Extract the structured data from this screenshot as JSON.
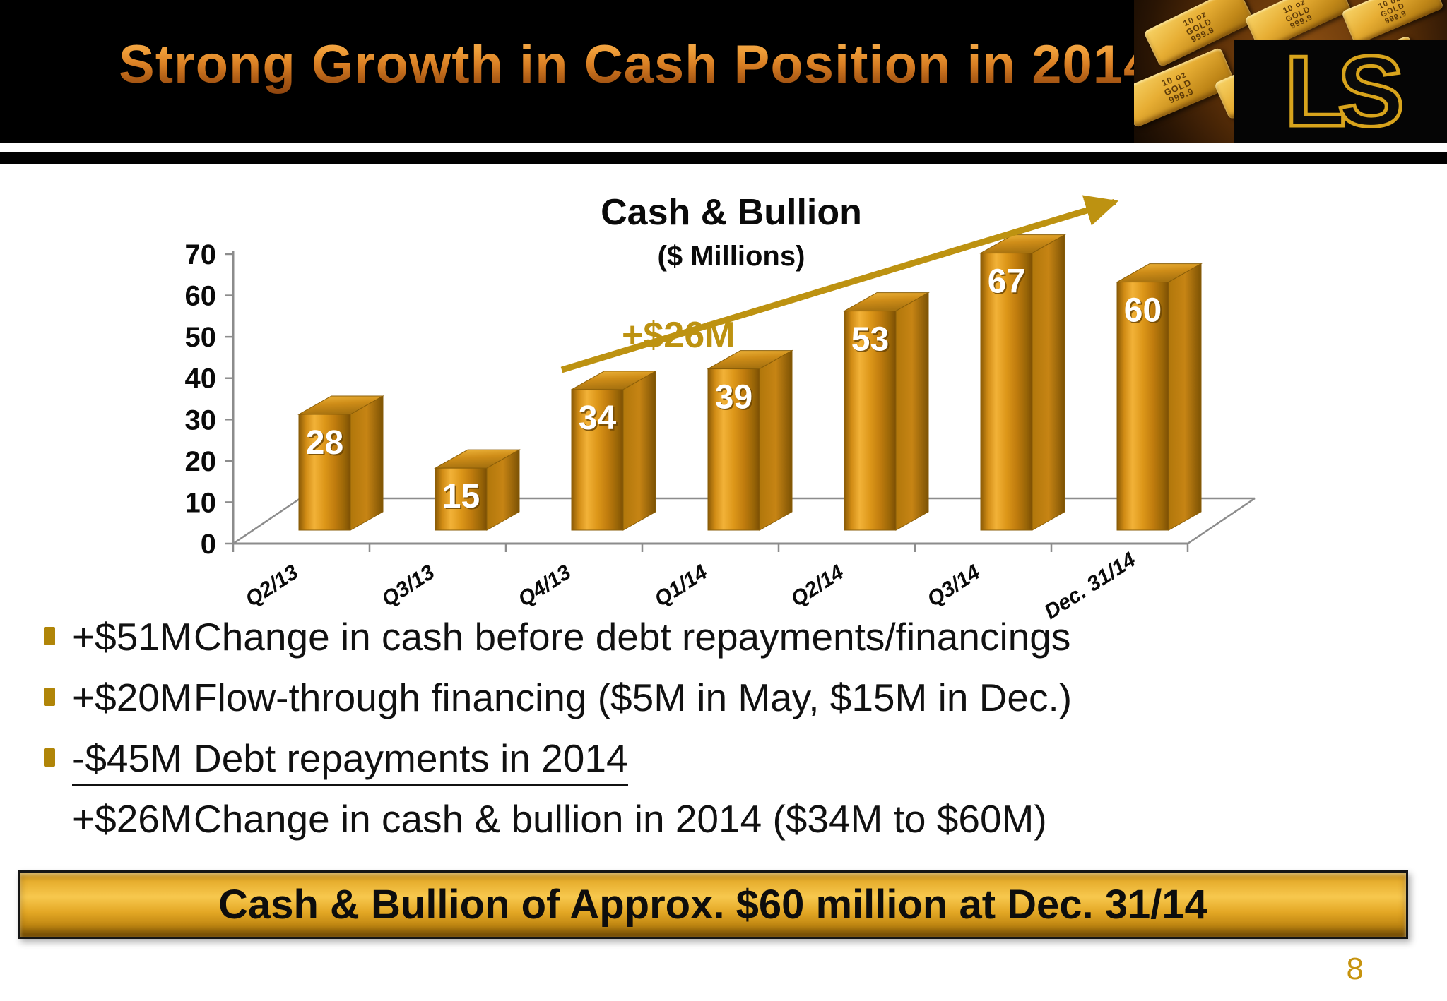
{
  "header": {
    "title": "Strong Growth in Cash Position in 2014",
    "logo_text": "LS",
    "gold_bar_stamp": [
      "10 oz",
      "GOLD",
      "999.9"
    ]
  },
  "chart_data": {
    "type": "bar",
    "style": "3d",
    "title": "Cash & Bullion",
    "subtitle": "($ Millions)",
    "categories": [
      "Q2/13",
      "Q3/13",
      "Q4/13",
      "Q1/14",
      "Q2/14",
      "Q3/14",
      "Dec. 31/14"
    ],
    "values": [
      28,
      15,
      34,
      39,
      53,
      67,
      60
    ],
    "ylim": [
      0,
      70
    ],
    "ytick_step": 10,
    "xlabel": "",
    "ylabel": "",
    "grid": false,
    "legend": false,
    "bar_color": "#d8921a",
    "annotation": {
      "text": "+$26M",
      "type": "trend-arrow",
      "color": "#bd9211"
    }
  },
  "bullets": [
    {
      "has_marker": true,
      "amount": "+$51M",
      "text": "Change in cash before debt repayments/financings",
      "underline": false
    },
    {
      "has_marker": true,
      "amount": "+$20M",
      "text": "Flow-through financing ($5M in May, $15M in Dec.)",
      "underline": false
    },
    {
      "has_marker": true,
      "amount": "-$45M",
      "text": "Debt repayments in 2014",
      "underline": true
    },
    {
      "has_marker": false,
      "amount": "+$26M",
      "text": "Change in cash & bullion in 2014 ($34M to $60M)",
      "underline": false
    }
  ],
  "banner": {
    "text": "Cash & Bullion of Approx. $60 million at Dec. 31/14"
  },
  "page_number": "8",
  "colors": {
    "accent_gold": "#bd9211",
    "bullet_marker": "#b08508",
    "bar_gold": "#d8921a",
    "banner_gold": "#e7ae2e",
    "page_number": "#c6930e",
    "header_bg": "#000000"
  }
}
